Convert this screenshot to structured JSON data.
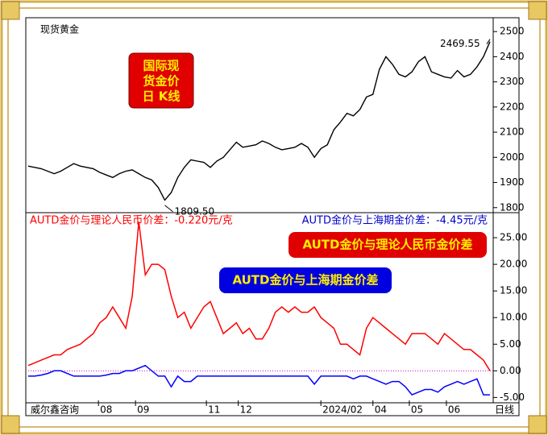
{
  "chart_data": [
    {
      "type": "line",
      "title": "现货黄金",
      "color": "#000000",
      "badge": [
        "国际现",
        "货金价",
        "日 K线"
      ],
      "x": [
        0,
        1,
        2,
        3,
        4,
        5,
        6,
        7,
        8,
        9,
        10,
        11,
        12,
        13,
        14,
        15,
        16,
        17,
        18,
        19,
        20,
        21,
        22,
        23,
        24,
        25,
        26,
        27,
        28,
        29,
        30,
        31,
        32,
        33,
        34,
        35,
        36,
        37,
        38,
        39,
        40,
        41,
        42,
        43,
        44,
        45,
        46,
        47,
        48,
        49,
        50,
        51,
        52,
        53,
        54,
        55,
        56,
        57,
        58,
        59,
        60,
        61,
        62,
        63,
        64,
        65,
        66,
        67,
        68,
        69,
        70,
        71
      ],
      "series": [
        {
          "name": "现货黄金",
          "color": "#000000",
          "values": [
            1965,
            1960,
            1955,
            1945,
            1935,
            1945,
            1960,
            1975,
            1965,
            1960,
            1955,
            1940,
            1930,
            1920,
            1935,
            1945,
            1950,
            1935,
            1920,
            1910,
            1880,
            1830,
            1860,
            1920,
            1960,
            1990,
            1985,
            1980,
            1960,
            1985,
            2000,
            2030,
            2060,
            2040,
            2045,
            2050,
            2065,
            2055,
            2040,
            2030,
            2035,
            2040,
            2055,
            2040,
            2000,
            2035,
            2050,
            2110,
            2140,
            2175,
            2165,
            2190,
            2240,
            2250,
            2350,
            2400,
            2370,
            2330,
            2320,
            2340,
            2380,
            2400,
            2340,
            2330,
            2320,
            2315,
            2345,
            2320,
            2330,
            2360,
            2400,
            2460
          ]
        }
      ],
      "high": {
        "value": 2469.55,
        "label": "2469.55"
      },
      "low": {
        "value": 1809.5,
        "label": "1809.50"
      },
      "xlim": [
        0,
        71
      ],
      "ylim": [
        1780,
        2555
      ],
      "yticks": [
        1800,
        1900,
        2000,
        2100,
        2200,
        2300,
        2400,
        2500
      ]
    },
    {
      "type": "line",
      "color": "#ff0000",
      "legend_texts": [
        "AUTD金价与理论人民币价差：-0.220元/克",
        "AUTD金价与上海期金价差：-4.45元/克"
      ],
      "x": [
        0,
        1,
        2,
        3,
        4,
        5,
        6,
        7,
        8,
        9,
        10,
        11,
        12,
        13,
        14,
        15,
        16,
        17,
        18,
        19,
        20,
        21,
        22,
        23,
        24,
        25,
        26,
        27,
        28,
        29,
        30,
        31,
        32,
        33,
        34,
        35,
        36,
        37,
        38,
        39,
        40,
        41,
        42,
        43,
        44,
        45,
        46,
        47,
        48,
        49,
        50,
        51,
        52,
        53,
        54,
        55,
        56,
        57,
        58,
        59,
        60,
        61,
        62,
        63,
        64,
        65,
        66,
        67,
        68,
        69,
        70,
        71
      ],
      "series": [
        {
          "name": "AUTD金价与理论人民币金价差",
          "color": "#ff0000",
          "values": [
            1,
            1.5,
            2,
            2.5,
            3,
            3,
            4,
            4.5,
            5,
            6,
            7,
            9,
            10,
            12,
            10,
            8,
            14,
            28,
            18,
            20,
            20,
            19,
            14,
            10,
            11,
            8,
            10,
            12,
            13,
            10,
            7,
            8,
            9,
            7,
            8,
            6,
            6,
            8,
            11,
            12,
            11,
            12,
            11,
            11,
            12,
            10,
            9,
            8,
            5,
            5,
            4,
            3,
            8,
            10,
            9,
            8,
            7,
            6,
            5,
            7,
            7,
            7,
            6,
            5,
            7,
            6,
            5,
            4,
            4,
            3,
            2,
            0
          ]
        },
        {
          "name": "AUTD金价与上海期金价差",
          "color": "#0000ff",
          "values": [
            -1,
            -1,
            -0.8,
            -0.5,
            0,
            0,
            -0.5,
            -1,
            -1,
            -1,
            -1,
            -1,
            -0.8,
            -0.5,
            -0.5,
            0,
            0,
            0.5,
            1,
            0,
            -1,
            -1,
            -3,
            -1,
            -2,
            -2,
            -1,
            -1,
            -1,
            -1,
            -1,
            -1,
            -1,
            -1,
            -1,
            -1,
            -1,
            -1,
            -1,
            -1,
            -1,
            -1,
            -1,
            -1,
            -2.5,
            -1,
            -1,
            -1,
            -1,
            -1,
            -1.5,
            -1,
            -1,
            -1.5,
            -2,
            -2.5,
            -2,
            -2,
            -3,
            -4.5,
            -4,
            -3.5,
            -3.5,
            -4,
            -3,
            -2.5,
            -2,
            -2.5,
            -2,
            -1.5,
            -4.5,
            -4.5
          ]
        }
      ],
      "reference_line": 0,
      "xlim": [
        0,
        71
      ],
      "ylim": [
        -6,
        29.7
      ],
      "yticks": [
        {
          "value": -5,
          "label": "-5.00"
        },
        {
          "value": 0,
          "label": "0.00"
        },
        {
          "value": 5,
          "label": "5.00"
        },
        {
          "value": 10,
          "label": "10.00"
        },
        {
          "value": 15,
          "label": "15.00"
        },
        {
          "value": 20,
          "label": "20.00"
        },
        {
          "value": 25,
          "label": "25.00"
        }
      ],
      "xticks": [
        {
          "value": 10.8,
          "label": "08"
        },
        {
          "value": 16.5,
          "label": "09"
        },
        {
          "value": 27.4,
          "label": "11"
        },
        {
          "value": 32.3,
          "label": "12"
        },
        {
          "value": 45,
          "label": "2024/02"
        },
        {
          "value": 53,
          "label": "04"
        },
        {
          "value": 58.6,
          "label": "05"
        },
        {
          "value": 64.3,
          "label": "06"
        }
      ],
      "period": "日线",
      "source": "威尔鑫咨询"
    }
  ]
}
